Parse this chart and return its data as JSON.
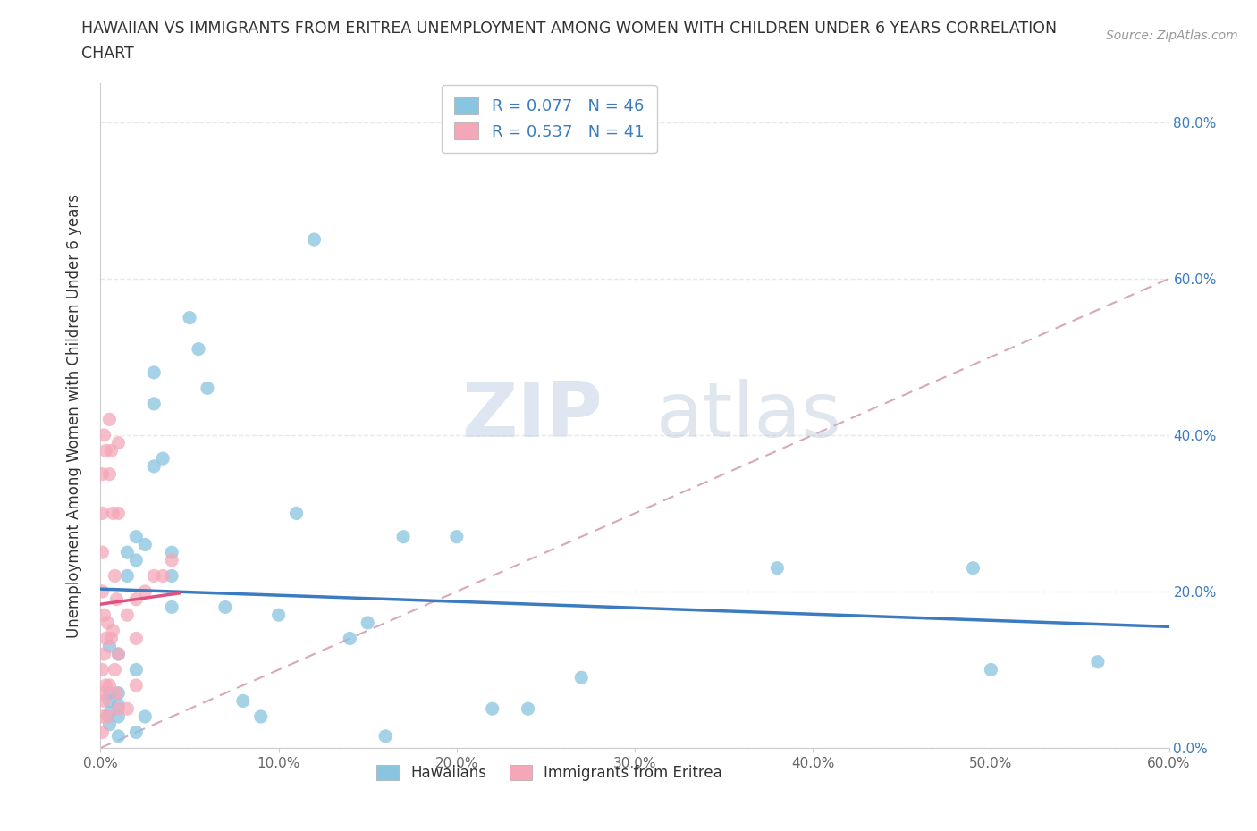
{
  "title_line1": "HAWAIIAN VS IMMIGRANTS FROM ERITREA UNEMPLOYMENT AMONG WOMEN WITH CHILDREN UNDER 6 YEARS CORRELATION",
  "title_line2": "CHART",
  "source": "Source: ZipAtlas.com",
  "ylabel": "Unemployment Among Women with Children Under 6 years",
  "xlim": [
    0.0,
    0.6
  ],
  "ylim": [
    0.0,
    0.85
  ],
  "x_ticks": [
    0.0,
    0.1,
    0.2,
    0.3,
    0.4,
    0.5,
    0.6
  ],
  "x_tick_labels": [
    "0.0%",
    "10.0%",
    "20.0%",
    "30.0%",
    "40.0%",
    "50.0%",
    "60.0%"
  ],
  "y_ticks": [
    0.0,
    0.2,
    0.4,
    0.6,
    0.8
  ],
  "y_tick_labels": [
    "0.0%",
    "20.0%",
    "40.0%",
    "60.0%",
    "80.0%"
  ],
  "hawaiian_color": "#89c4e1",
  "eritrea_color": "#f4a7b9",
  "trendline_hawaiian_color": "#3b7bbf",
  "trendline_eritrea_color": "#e05080",
  "diagonal_color": "#d8a8b8",
  "R_hawaiian": 0.077,
  "N_hawaiian": 46,
  "R_eritrea": 0.537,
  "N_eritrea": 41,
  "legend_text_color": "#3b7bbf",
  "watermark_zip": "ZIP",
  "watermark_atlas": "atlas",
  "hawaiian_x": [
    0.005,
    0.005,
    0.005,
    0.005,
    0.005,
    0.01,
    0.01,
    0.01,
    0.01,
    0.01,
    0.015,
    0.015,
    0.02,
    0.02,
    0.02,
    0.02,
    0.025,
    0.025,
    0.03,
    0.03,
    0.03,
    0.035,
    0.04,
    0.04,
    0.04,
    0.05,
    0.055,
    0.06,
    0.07,
    0.08,
    0.09,
    0.1,
    0.11,
    0.12,
    0.14,
    0.15,
    0.16,
    0.17,
    0.2,
    0.22,
    0.24,
    0.27,
    0.38,
    0.49,
    0.5,
    0.56
  ],
  "hawaiian_y": [
    0.13,
    0.07,
    0.06,
    0.045,
    0.03,
    0.12,
    0.07,
    0.055,
    0.04,
    0.015,
    0.25,
    0.22,
    0.27,
    0.24,
    0.1,
    0.02,
    0.26,
    0.04,
    0.48,
    0.44,
    0.36,
    0.37,
    0.25,
    0.22,
    0.18,
    0.55,
    0.51,
    0.46,
    0.18,
    0.06,
    0.04,
    0.17,
    0.3,
    0.65,
    0.14,
    0.16,
    0.015,
    0.27,
    0.27,
    0.05,
    0.05,
    0.09,
    0.23,
    0.23,
    0.1,
    0.11
  ],
  "eritrea_x": [
    0.001,
    0.001,
    0.001,
    0.001,
    0.001,
    0.001,
    0.001,
    0.001,
    0.002,
    0.002,
    0.002,
    0.002,
    0.003,
    0.003,
    0.003,
    0.004,
    0.004,
    0.005,
    0.005,
    0.005,
    0.006,
    0.006,
    0.007,
    0.007,
    0.008,
    0.008,
    0.009,
    0.009,
    0.01,
    0.01,
    0.01,
    0.01,
    0.015,
    0.015,
    0.02,
    0.02,
    0.02,
    0.025,
    0.03,
    0.035,
    0.04
  ],
  "eritrea_y": [
    0.35,
    0.3,
    0.25,
    0.2,
    0.1,
    0.07,
    0.04,
    0.02,
    0.4,
    0.17,
    0.12,
    0.06,
    0.38,
    0.14,
    0.08,
    0.16,
    0.04,
    0.42,
    0.35,
    0.08,
    0.38,
    0.14,
    0.3,
    0.15,
    0.22,
    0.1,
    0.19,
    0.07,
    0.39,
    0.3,
    0.12,
    0.05,
    0.17,
    0.05,
    0.19,
    0.14,
    0.08,
    0.2,
    0.22,
    0.22,
    0.24
  ],
  "background_color": "#ffffff",
  "grid_color": "#e8e8e8"
}
